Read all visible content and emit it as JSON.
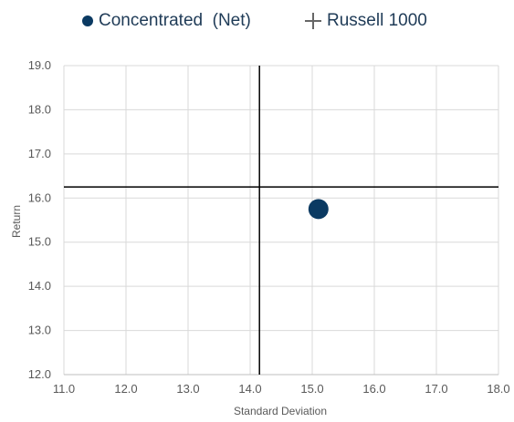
{
  "chart_data": {
    "type": "scatter",
    "xlabel": "Standard Deviation",
    "ylabel": "Return",
    "xlim": [
      11.0,
      18.0
    ],
    "ylim": [
      12.0,
      19.0
    ],
    "xticks": [
      "11.0",
      "12.0",
      "13.0",
      "14.0",
      "15.0",
      "16.0",
      "17.0",
      "18.0"
    ],
    "yticks": [
      "12.0",
      "13.0",
      "14.0",
      "15.0",
      "16.0",
      "17.0",
      "18.0",
      "19.0"
    ],
    "grid": true,
    "legend_position": "top",
    "series": [
      {
        "name": "Concentrated  (Net)",
        "marker": "dot",
        "color": "#0b3a62",
        "points": [
          {
            "x": 15.1,
            "y": 15.75
          }
        ]
      },
      {
        "name": "Russell 1000",
        "marker": "crosshair",
        "color": "#000000",
        "points": [
          {
            "x": 14.15,
            "y": 16.25
          }
        ]
      }
    ]
  }
}
